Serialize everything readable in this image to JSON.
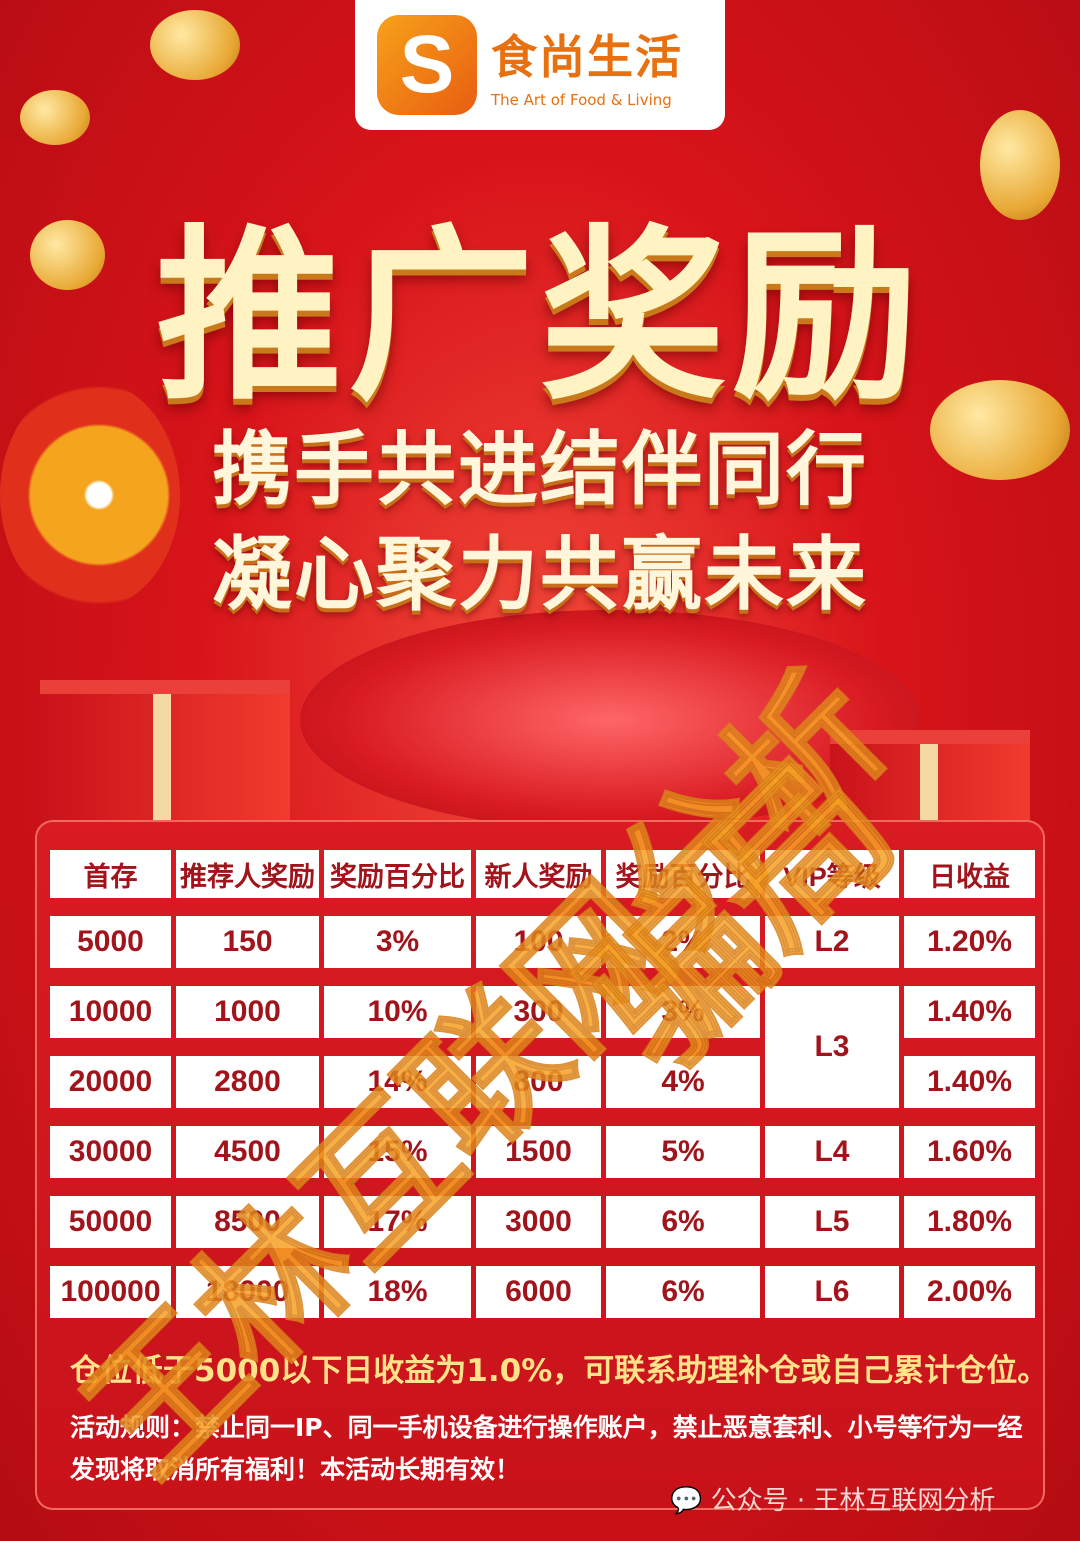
{
  "logo": {
    "name": "食尚生活",
    "tagline": "The Art of Food & Living",
    "mark": "S"
  },
  "title": "推广奖励",
  "subtitle_1": "携手共进结伴同行",
  "subtitle_2": "凝心聚力共赢未来",
  "table": {
    "headers": [
      "首存",
      "推荐人奖励",
      "奖励百分比",
      "新人奖励",
      "奖励百分比",
      "VIP等级",
      "日收益"
    ],
    "rows": [
      [
        "5000",
        "150",
        "3%",
        "100",
        "2%",
        "L2",
        "1.20%"
      ],
      [
        "10000",
        "1000",
        "10%",
        "300",
        "3%",
        "L3",
        "1.40%"
      ],
      [
        "20000",
        "2800",
        "14%",
        "800",
        "4%",
        "",
        "1.40%"
      ],
      [
        "30000",
        "4500",
        "15%",
        "1500",
        "5%",
        "L4",
        "1.60%"
      ],
      [
        "50000",
        "8500",
        "17%",
        "3000",
        "6%",
        "L5",
        "1.80%"
      ],
      [
        "100000",
        "18000",
        "18%",
        "6000",
        "6%",
        "L6",
        "2.00%"
      ]
    ]
  },
  "note": "仓位低于5000以下日收益为1.0%，可联系助理补仓或自己累计仓位。",
  "rules": "活动规则：禁止同一IP、同一手机设备进行操作账户，禁止恶意套利、小号等行为一经发现将取消所有福利！本活动长期有效！",
  "source": "公众号 · 王林互联网分析",
  "watermark": "王林互联网分析",
  "watermark_2": "骗局",
  "colors": {
    "background": "#d8141a",
    "title_gold": "#fff3c4",
    "table_text": "#a2141b",
    "note": "#ffe28a",
    "watermark": "#f6a225"
  }
}
